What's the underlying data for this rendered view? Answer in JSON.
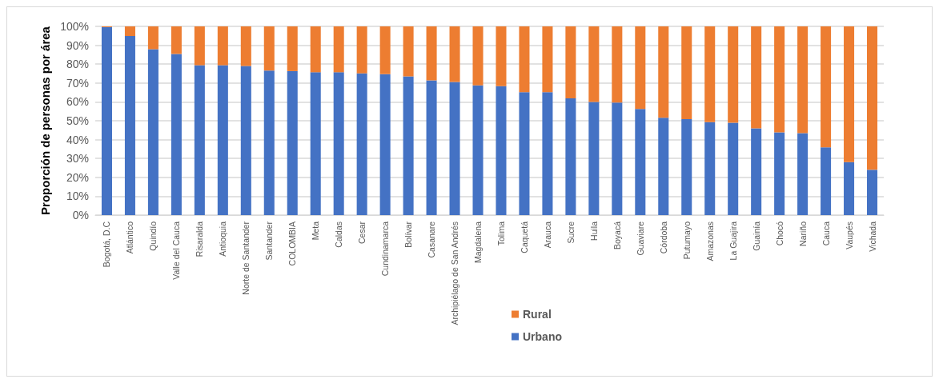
{
  "chart_data": {
    "type": "bar",
    "stacked": true,
    "ylabel": "Proporción de personas por área",
    "categories": [
      "Bogotá, D.C",
      "Atlántico",
      "Quindío",
      "Valle del Cauca",
      "Risaralda",
      "Antioquia",
      "Norte de Santander",
      "Santander",
      "COLOMBIA",
      "Meta",
      "Caldas",
      "Cesar",
      "Cundinamarca",
      "Bolívar",
      "Casanare",
      "Archipiélago de San Andrés",
      "Magdalena",
      "Tolima",
      "Caquetá",
      "Arauca",
      "Sucre",
      "Huila",
      "Boyacá",
      "Guaviare",
      "Córdoba",
      "Putumayo",
      "Amazonas",
      "La Guajira",
      "Guainía",
      "Chocó",
      "Nariño",
      "Cauca",
      "Vaupés",
      "Vichada"
    ],
    "series": [
      {
        "name": "Urbano",
        "color": "#4472c4",
        "values": [
          99.6,
          94.9,
          87.9,
          85.4,
          79.4,
          79.4,
          79.0,
          76.6,
          76.3,
          75.7,
          75.7,
          75.1,
          74.7,
          73.5,
          71.4,
          70.6,
          68.7,
          68.3,
          65.2,
          65.2,
          61.9,
          60.0,
          59.6,
          56.3,
          51.6,
          50.9,
          49.3,
          48.9,
          46.0,
          43.9,
          43.4,
          35.9,
          28.1,
          24.0
        ]
      },
      {
        "name": "Rural",
        "color": "#ed7d31",
        "values": [
          0.4,
          5.1,
          12.1,
          14.6,
          20.6,
          20.6,
          21.0,
          23.4,
          23.7,
          24.3,
          24.3,
          24.9,
          25.3,
          26.5,
          28.6,
          29.4,
          31.3,
          31.7,
          34.8,
          34.8,
          38.1,
          40.0,
          40.4,
          43.7,
          48.4,
          49.1,
          50.7,
          51.1,
          54.0,
          56.1,
          56.6,
          64.1,
          71.9,
          76.0
        ]
      }
    ],
    "ylim": [
      0,
      100
    ],
    "yticks": [
      {
        "value": 0,
        "label": "0%"
      },
      {
        "value": 10,
        "label": "10%"
      },
      {
        "value": 20,
        "label": "20%"
      },
      {
        "value": 30,
        "label": "30%"
      },
      {
        "value": 40,
        "label": "40%"
      },
      {
        "value": 50,
        "label": "50%"
      },
      {
        "value": 60,
        "label": "60%"
      },
      {
        "value": 70,
        "label": "70%"
      },
      {
        "value": 80,
        "label": "80%"
      },
      {
        "value": 90,
        "label": "90%"
      },
      {
        "value": 100,
        "label": "100%"
      }
    ],
    "grid": "y",
    "legend": "bottom"
  }
}
